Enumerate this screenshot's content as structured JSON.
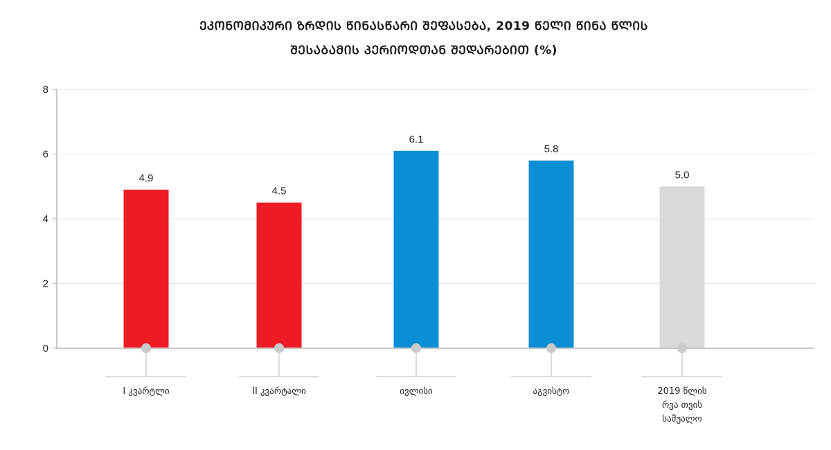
{
  "chart_data": {
    "type": "bar",
    "title_lines": [
      "ᲔᲙᲝᲜᲝᲛᲘᲙᲣᲠᲘ ᲖᲠᲓᲘᲡ ᲬᲘᲜᲐᲡᲬᲐᲠᲘ ᲨᲔᲤᲐᲡᲔᲑᲐ, 2019 ᲬᲔᲚᲘ ᲬᲘᲜᲐ ᲬᲚᲘᲡ",
      "ᲨᲔᲡᲐᲑᲐᲛᲘᲡ ᲞᲔᲠᲘᲝᲓᲗᲐᲜ ᲨᲔᲓᲐᲠᲔᲑᲘᲗ (%)"
    ],
    "categories": [
      [
        "I კვარტლი"
      ],
      [
        "II კვარტალი"
      ],
      [
        "ივლისი"
      ],
      [
        "აგვისტო"
      ],
      [
        "2019 წლის",
        "რვა თვის",
        "საშუალო"
      ]
    ],
    "values": [
      4.9,
      4.5,
      6.1,
      5.8,
      5.0
    ],
    "value_labels": [
      "4.9",
      "4.5",
      "6.1",
      "5.8",
      "5.0"
    ],
    "colors": [
      "#ED1C24",
      "#ED1C24",
      "#0A8FD6",
      "#0A8FD6",
      "#D9DADC"
    ],
    "yticks": [
      "0",
      "2",
      "4",
      "6",
      "8"
    ],
    "ylim": [
      0,
      8
    ],
    "xlabel": "",
    "ylabel": "",
    "grid": true,
    "legend": "none"
  }
}
